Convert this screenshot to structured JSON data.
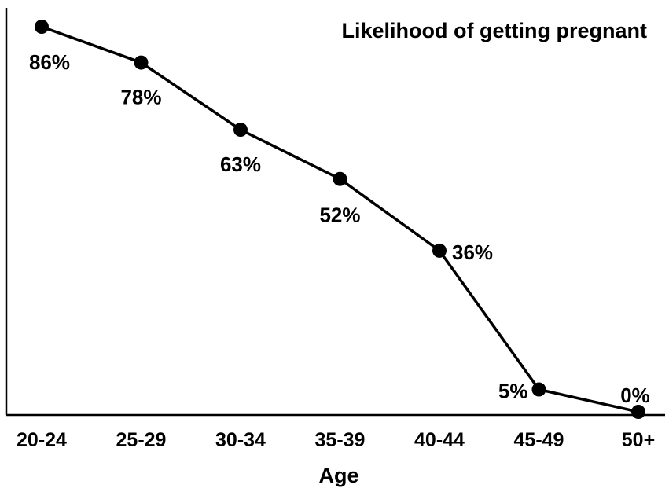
{
  "chart_data": {
    "type": "line",
    "title": "Likelihood of getting pregnant",
    "xlabel": "Age",
    "ylabel": "",
    "categories": [
      "20-24",
      "25-29",
      "30-34",
      "35-39",
      "40-44",
      "45-49",
      "50+"
    ],
    "values": [
      86,
      78,
      63,
      52,
      36,
      5,
      0
    ],
    "data_labels": [
      "86%",
      "78%",
      "63%",
      "52%",
      "36%",
      "5%",
      "0%"
    ],
    "ylim": [
      0,
      90
    ],
    "grid": false,
    "legend": "none",
    "colors": {
      "line": "#000000",
      "marker": "#000000",
      "axis": "#000000"
    }
  }
}
